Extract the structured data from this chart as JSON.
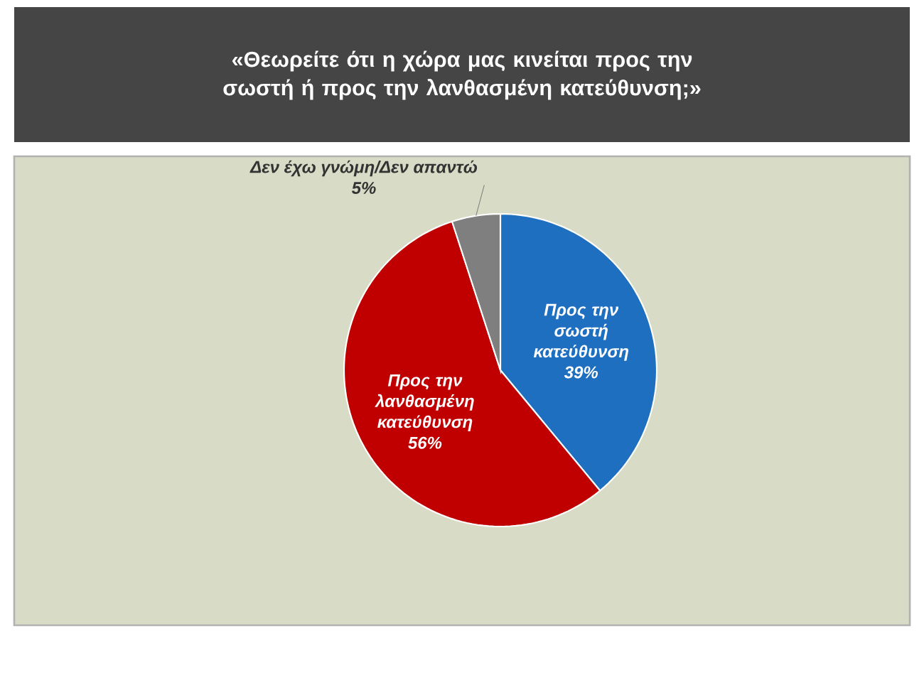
{
  "chart_data": {
    "type": "pie",
    "title": "«Θεωρείτε ότι η χώρα μας κινείται προς την σωστή ή προς την λανθασμένη κατεύθυνση;»",
    "categories": [
      "Προς την σωστή κατεύθυνση",
      "Προς την λανθασμένη κατεύθυνση",
      "Δεν έχω γνώμη/Δεν απαντώ"
    ],
    "values": [
      39,
      56,
      5
    ],
    "value_labels": [
      "39%",
      "56%",
      "5%"
    ],
    "colors": [
      "#1f6fc0",
      "#c00000",
      "#7f7f7f"
    ]
  }
}
